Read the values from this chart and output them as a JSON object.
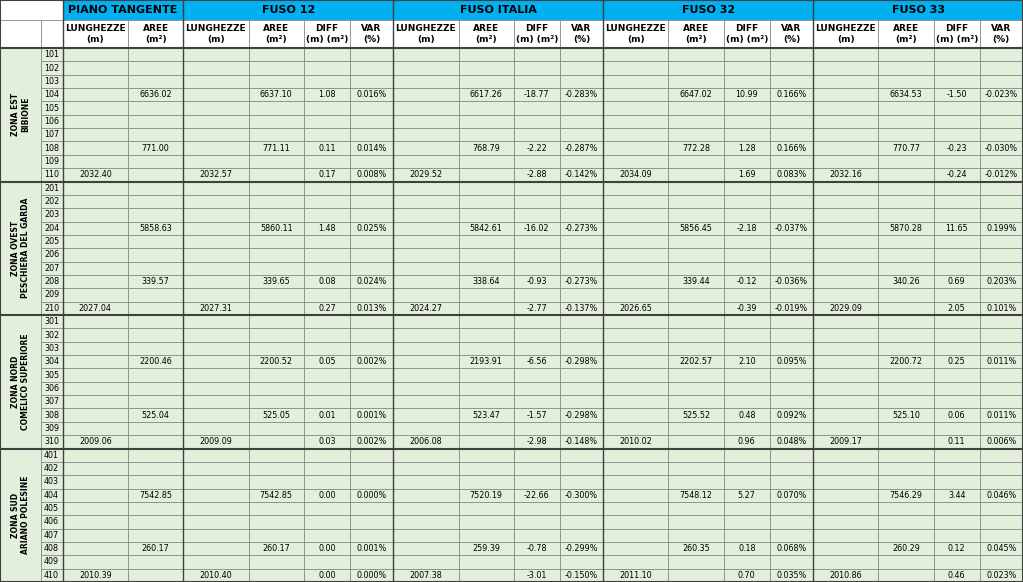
{
  "zone_defs": [
    {
      "label": "ZONA EST\nBIBIONE",
      "rows": [
        101,
        102,
        103,
        104,
        105,
        106,
        107,
        108,
        109,
        110
      ]
    },
    {
      "label": "ZONA OVEST\nPESCHIERA DEL GARDA",
      "rows": [
        201,
        202,
        203,
        204,
        205,
        206,
        207,
        208,
        209,
        210
      ]
    },
    {
      "label": "ZONA NORD\nCOMELICO SUPERIORE",
      "rows": [
        301,
        302,
        303,
        304,
        305,
        306,
        307,
        308,
        309,
        310
      ]
    },
    {
      "label": "ZONA SUD\nARIANO POLESINE",
      "rows": [
        401,
        402,
        403,
        404,
        405,
        406,
        407,
        408,
        409,
        410
      ]
    }
  ],
  "rows": {
    "101": [
      "",
      "",
      "",
      "",
      "",
      "",
      "",
      "",
      "",
      "",
      "",
      "",
      "",
      "",
      "",
      "",
      "",
      "",
      ""
    ],
    "102": [
      "",
      "",
      "",
      "",
      "",
      "",
      "",
      "",
      "",
      "",
      "",
      "",
      "",
      "",
      "",
      "",
      "",
      "",
      ""
    ],
    "103": [
      "",
      "",
      "",
      "",
      "",
      "",
      "",
      "",
      "",
      "",
      "",
      "",
      "",
      "",
      "",
      "",
      "",
      "",
      ""
    ],
    "104": [
      "",
      "6636.02",
      "",
      "6637.10",
      "1.08",
      "0.016%",
      "",
      "6617.26",
      "-18.77",
      "-0.283%",
      "",
      "6647.02",
      "10.99",
      "0.166%",
      "",
      "6634.53",
      "-1.50",
      "-0.023%"
    ],
    "105": [
      "",
      "",
      "",
      "",
      "",
      "",
      "",
      "",
      "",
      "",
      "",
      "",
      "",
      "",
      "",
      "",
      "",
      "",
      ""
    ],
    "106": [
      "",
      "",
      "",
      "",
      "",
      "",
      "",
      "",
      "",
      "",
      "",
      "",
      "",
      "",
      "",
      "",
      "",
      "",
      ""
    ],
    "107": [
      "",
      "",
      "",
      "",
      "",
      "",
      "",
      "",
      "",
      "",
      "",
      "",
      "",
      "",
      "",
      "",
      "",
      "",
      ""
    ],
    "108": [
      "",
      "771.00",
      "",
      "771.11",
      "0.11",
      "0.014%",
      "",
      "768.79",
      "-2.22",
      "-0.287%",
      "",
      "772.28",
      "1.28",
      "0.166%",
      "",
      "770.77",
      "-0.23",
      "-0.030%"
    ],
    "109": [
      "",
      "",
      "",
      "",
      "",
      "",
      "",
      "",
      "",
      "",
      "",
      "",
      "",
      "",
      "",
      "",
      "",
      "",
      ""
    ],
    "110": [
      "2032.40",
      "",
      "2032.57",
      "",
      "0.17",
      "0.008%",
      "2029.52",
      "",
      "-2.88",
      "-0.142%",
      "2034.09",
      "",
      "1.69",
      "0.083%",
      "2032.16",
      "",
      "-0.24",
      "-0.012%"
    ],
    "201": [
      "",
      "",
      "",
      "",
      "",
      "",
      "",
      "",
      "",
      "",
      "",
      "",
      "",
      "",
      "",
      "",
      "",
      "",
      ""
    ],
    "202": [
      "",
      "",
      "",
      "",
      "",
      "",
      "",
      "",
      "",
      "",
      "",
      "",
      "",
      "",
      "",
      "",
      "",
      "",
      ""
    ],
    "203": [
      "",
      "",
      "",
      "",
      "",
      "",
      "",
      "",
      "",
      "",
      "",
      "",
      "",
      "",
      "",
      "",
      "",
      "",
      ""
    ],
    "204": [
      "",
      "5858.63",
      "",
      "5860.11",
      "1.48",
      "0.025%",
      "",
      "5842.61",
      "-16.02",
      "-0.273%",
      "",
      "5856.45",
      "-2.18",
      "-0.037%",
      "",
      "5870.28",
      "11.65",
      "0.199%"
    ],
    "205": [
      "",
      "",
      "",
      "",
      "",
      "",
      "",
      "",
      "",
      "",
      "",
      "",
      "",
      "",
      "",
      "",
      "",
      "",
      ""
    ],
    "206": [
      "",
      "",
      "",
      "",
      "",
      "",
      "",
      "",
      "",
      "",
      "",
      "",
      "",
      "",
      "",
      "",
      "",
      "",
      ""
    ],
    "207": [
      "",
      "",
      "",
      "",
      "",
      "",
      "",
      "",
      "",
      "",
      "",
      "",
      "",
      "",
      "",
      "",
      "",
      "",
      ""
    ],
    "208": [
      "",
      "339.57",
      "",
      "339.65",
      "0.08",
      "0.024%",
      "",
      "338.64",
      "-0.93",
      "-0.273%",
      "",
      "339.44",
      "-0.12",
      "-0.036%",
      "",
      "340.26",
      "0.69",
      "0.203%"
    ],
    "209": [
      "",
      "",
      "",
      "",
      "",
      "",
      "",
      "",
      "",
      "",
      "",
      "",
      "",
      "",
      "",
      "",
      "",
      "",
      ""
    ],
    "210": [
      "2027.04",
      "",
      "2027.31",
      "",
      "0.27",
      "0.013%",
      "2024.27",
      "",
      "-2.77",
      "-0.137%",
      "2026.65",
      "",
      "-0.39",
      "-0.019%",
      "2029.09",
      "",
      "2.05",
      "0.101%"
    ],
    "301": [
      "",
      "",
      "",
      "",
      "",
      "",
      "",
      "",
      "",
      "",
      "",
      "",
      "",
      "",
      "",
      "",
      "",
      "",
      ""
    ],
    "302": [
      "",
      "",
      "",
      "",
      "",
      "",
      "",
      "",
      "",
      "",
      "",
      "",
      "",
      "",
      "",
      "",
      "",
      "",
      ""
    ],
    "303": [
      "",
      "",
      "",
      "",
      "",
      "",
      "",
      "",
      "",
      "",
      "",
      "",
      "",
      "",
      "",
      "",
      "",
      "",
      ""
    ],
    "304": [
      "",
      "2200.46",
      "",
      "2200.52",
      "0.05",
      "0.002%",
      "",
      "2193.91",
      "-6.56",
      "-0.298%",
      "",
      "2202.57",
      "2.10",
      "0.095%",
      "",
      "2200.72",
      "0.25",
      "0.011%"
    ],
    "305": [
      "",
      "",
      "",
      "",
      "",
      "",
      "",
      "",
      "",
      "",
      "",
      "",
      "",
      "",
      "",
      "",
      "",
      "",
      ""
    ],
    "306": [
      "",
      "",
      "",
      "",
      "",
      "",
      "",
      "",
      "",
      "",
      "",
      "",
      "",
      "",
      "",
      "",
      "",
      "",
      ""
    ],
    "307": [
      "",
      "",
      "",
      "",
      "",
      "",
      "",
      "",
      "",
      "",
      "",
      "",
      "",
      "",
      "",
      "",
      "",
      "",
      ""
    ],
    "308": [
      "",
      "525.04",
      "",
      "525.05",
      "0.01",
      "0.001%",
      "",
      "523.47",
      "-1.57",
      "-0.298%",
      "",
      "525.52",
      "0.48",
      "0.092%",
      "",
      "525.10",
      "0.06",
      "0.011%"
    ],
    "309": [
      "",
      "",
      "",
      "",
      "",
      "",
      "",
      "",
      "",
      "",
      "",
      "",
      "",
      "",
      "",
      "",
      "",
      "",
      ""
    ],
    "310": [
      "2009.06",
      "",
      "2009.09",
      "",
      "0.03",
      "0.002%",
      "2006.08",
      "",
      "-2.98",
      "-0.148%",
      "2010.02",
      "",
      "0.96",
      "0.048%",
      "2009.17",
      "",
      "0.11",
      "0.006%"
    ],
    "401": [
      "",
      "",
      "",
      "",
      "",
      "",
      "",
      "",
      "",
      "",
      "",
      "",
      "",
      "",
      "",
      "",
      "",
      "",
      ""
    ],
    "402": [
      "",
      "",
      "",
      "",
      "",
      "",
      "",
      "",
      "",
      "",
      "",
      "",
      "",
      "",
      "",
      "",
      "",
      "",
      ""
    ],
    "403": [
      "",
      "",
      "",
      "",
      "",
      "",
      "",
      "",
      "",
      "",
      "",
      "",
      "",
      "",
      "",
      "",
      "",
      "",
      ""
    ],
    "404": [
      "",
      "7542.85",
      "",
      "7542.85",
      "0.00",
      "0.000%",
      "",
      "7520.19",
      "-22.66",
      "-0.300%",
      "",
      "7548.12",
      "5.27",
      "0.070%",
      "",
      "7546.29",
      "3.44",
      "0.046%"
    ],
    "405": [
      "",
      "",
      "",
      "",
      "",
      "",
      "",
      "",
      "",
      "",
      "",
      "",
      "",
      "",
      "",
      "",
      "",
      "",
      ""
    ],
    "406": [
      "",
      "",
      "",
      "",
      "",
      "",
      "",
      "",
      "",
      "",
      "",
      "",
      "",
      "",
      "",
      "",
      "",
      "",
      ""
    ],
    "407": [
      "",
      "",
      "",
      "",
      "",
      "",
      "",
      "",
      "",
      "",
      "",
      "",
      "",
      "",
      "",
      "",
      "",
      "",
      ""
    ],
    "408": [
      "",
      "260.17",
      "",
      "260.17",
      "0.00",
      "0.001%",
      "",
      "259.39",
      "-0.78",
      "-0.299%",
      "",
      "260.35",
      "0.18",
      "0.068%",
      "",
      "260.29",
      "0.12",
      "0.045%"
    ],
    "409": [
      "",
      "",
      "",
      "",
      "",
      "",
      "",
      "",
      "",
      "",
      "",
      "",
      "",
      "",
      "",
      "",
      "",
      "",
      ""
    ],
    "410": [
      "2010.39",
      "",
      "2010.40",
      "",
      "0.00",
      "0.000%",
      "2007.38",
      "",
      "-3.01",
      "-0.150%",
      "2011.10",
      "",
      "0.70",
      "0.035%",
      "2010.86",
      "",
      "0.46",
      "0.023%"
    ]
  },
  "hdr_blue": "#00B0F0",
  "green_light": "#E2EFDA",
  "white": "#FFFFFF",
  "border_thin": "#7F7F7F",
  "border_thick": "#404040",
  "font_size_data": 5.8,
  "font_size_header": 6.5,
  "font_size_header1": 8.0
}
